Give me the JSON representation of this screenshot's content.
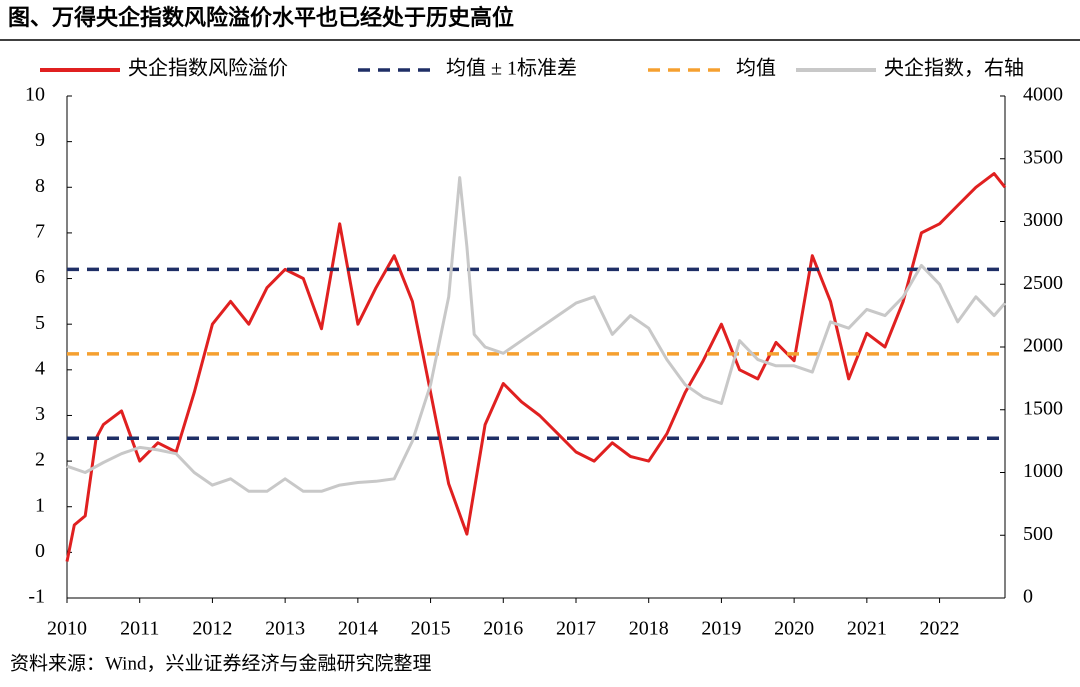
{
  "chart_data": {
    "type": "line",
    "title": "图、万得央企指数风险溢价水平也已经处于历史高位",
    "source": "资料来源：Wind，兴业证券经济与金融研究院整理",
    "xlim": [
      2010,
      2022.9
    ],
    "xticks": [
      2010,
      2011,
      2012,
      2013,
      2014,
      2015,
      2016,
      2017,
      2018,
      2019,
      2020,
      2021,
      2022
    ],
    "ylim": [
      -1,
      10
    ],
    "yticks": [
      -1,
      0,
      1,
      2,
      3,
      4,
      5,
      6,
      7,
      8,
      9,
      10
    ],
    "y2lim": [
      0,
      4000
    ],
    "y2ticks": [
      0,
      500,
      1000,
      1500,
      2000,
      2500,
      3000,
      3500,
      4000
    ],
    "series": [
      {
        "name": "央企指数风险溢价",
        "color": "#e02020",
        "style": "line",
        "x": [
          2010.0,
          2010.1,
          2010.25,
          2010.4,
          2010.5,
          2010.75,
          2011.0,
          2011.25,
          2011.5,
          2011.75,
          2012.0,
          2012.25,
          2012.5,
          2012.75,
          2013.0,
          2013.25,
          2013.5,
          2013.75,
          2014.0,
          2014.25,
          2014.5,
          2014.75,
          2015.0,
          2015.25,
          2015.5,
          2015.75,
          2016.0,
          2016.25,
          2016.5,
          2016.75,
          2017.0,
          2017.25,
          2017.5,
          2017.75,
          2018.0,
          2018.25,
          2018.5,
          2018.75,
          2019.0,
          2019.25,
          2019.5,
          2019.75,
          2020.0,
          2020.25,
          2020.5,
          2020.75,
          2021.0,
          2021.25,
          2021.5,
          2021.75,
          2022.0,
          2022.25,
          2022.5,
          2022.75,
          2022.9
        ],
        "values": [
          -0.2,
          0.6,
          0.8,
          2.5,
          2.8,
          3.1,
          2.0,
          2.4,
          2.2,
          3.5,
          5.0,
          5.5,
          5.0,
          5.8,
          6.2,
          6.0,
          4.9,
          7.2,
          5.0,
          5.8,
          6.5,
          5.5,
          3.5,
          1.5,
          0.4,
          2.8,
          3.7,
          3.3,
          3.0,
          2.6,
          2.2,
          2.0,
          2.4,
          2.1,
          2.0,
          2.6,
          3.5,
          4.2,
          5.0,
          4.0,
          3.8,
          4.6,
          4.2,
          6.5,
          5.5,
          3.8,
          4.8,
          4.5,
          5.5,
          7.0,
          7.2,
          7.6,
          8.0,
          8.3,
          8.0
        ]
      },
      {
        "name": "均值 ± 1标准差",
        "color": "#1f2f66",
        "style": "hline",
        "values": [
          6.2,
          2.5
        ]
      },
      {
        "name": "均值",
        "color": "#f5a030",
        "style": "hline",
        "values": [
          4.35
        ]
      },
      {
        "name": "央企指数，右轴",
        "color": "#c8c8c8",
        "style": "line",
        "axis": "y2",
        "x": [
          2010.0,
          2010.25,
          2010.5,
          2010.75,
          2011.0,
          2011.25,
          2011.5,
          2011.75,
          2012.0,
          2012.25,
          2012.5,
          2012.75,
          2013.0,
          2013.25,
          2013.5,
          2013.75,
          2014.0,
          2014.25,
          2014.5,
          2014.75,
          2015.0,
          2015.25,
          2015.4,
          2015.5,
          2015.6,
          2015.75,
          2016.0,
          2016.25,
          2016.5,
          2016.75,
          2017.0,
          2017.25,
          2017.5,
          2017.75,
          2018.0,
          2018.25,
          2018.5,
          2018.75,
          2019.0,
          2019.25,
          2019.5,
          2019.75,
          2020.0,
          2020.25,
          2020.5,
          2020.75,
          2021.0,
          2021.25,
          2021.5,
          2021.75,
          2022.0,
          2022.25,
          2022.5,
          2022.75,
          2022.9
        ],
        "values": [
          1050,
          1000,
          1080,
          1150,
          1200,
          1180,
          1150,
          1000,
          900,
          950,
          850,
          850,
          950,
          850,
          850,
          900,
          920,
          930,
          950,
          1250,
          1700,
          2400,
          3350,
          2800,
          2100,
          2000,
          1950,
          2050,
          2150,
          2250,
          2350,
          2400,
          2100,
          2250,
          2150,
          1900,
          1700,
          1600,
          1550,
          2050,
          1900,
          1850,
          1850,
          1800,
          2200,
          2150,
          2300,
          2250,
          2400,
          2650,
          2500,
          2200,
          2400,
          2250,
          2350
        ]
      }
    ]
  }
}
